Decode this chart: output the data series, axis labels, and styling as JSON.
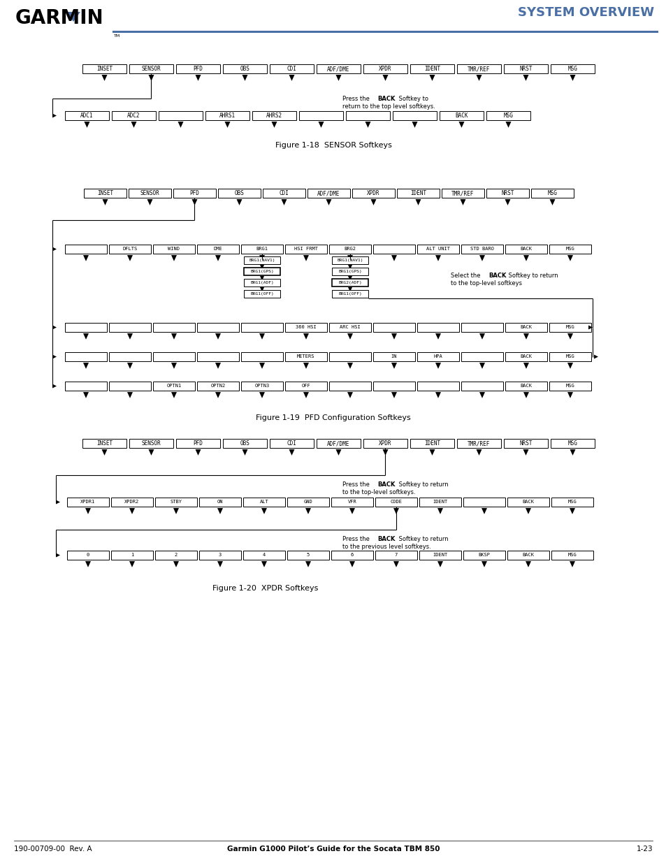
{
  "title": "SYSTEM OVERVIEW",
  "garmin_text": "GARMIN",
  "footer_left": "190-00709-00  Rev. A",
  "footer_center": "Garmin G1000 Pilot’s Guide for the Socata TBM 850",
  "footer_right": "1-23",
  "fig1_title": "Figure 1-18  SENSOR Softkeys",
  "fig2_title": "Figure 1-19  PFD Configuration Softkeys",
  "fig3_title": "Figure 1-20  XPDR Softkeys",
  "header_line_color": "#4a6fa5",
  "title_color": "#4a6fa5",
  "bg_color": "#ffffff",
  "fig1_top_keys": [
    "INSET",
    "SENSOR",
    "PFD",
    "OBS",
    "CDI",
    "ADF/DME",
    "XPDR",
    "IDENT",
    "TMR/REF",
    "NRST",
    "MSG"
  ],
  "fig1_sub_keys": [
    "ADC1",
    "ADC2",
    "",
    "AHRS1",
    "AHRS2",
    "",
    "",
    "",
    "BACK",
    "MSG"
  ],
  "fig2_top_keys": [
    "INSET",
    "SENSOR",
    "PFD",
    "OBS",
    "CDI",
    "ADF/DME",
    "XPDR",
    "IDENT",
    "TMR/REF",
    "NRST",
    "MSG"
  ],
  "fig2_row1_keys": [
    "",
    "DFLTS",
    "WIND",
    "DME",
    "BRG1",
    "HSI FRMT",
    "BRG2",
    "",
    "ALT UNIT",
    "STD BARO",
    "BACK",
    "MSG"
  ],
  "fig2_brg1_keys": [
    "BRG1(NAV1)",
    "BRG1(GPS)",
    "BRG1(ADF)",
    "BRG1(OFF)"
  ],
  "fig2_brg2_keys": [
    "BRG1(NAV1)",
    "BRG1(GPS)",
    "BRG2(ADF)",
    "BRG1(OFF)"
  ],
  "fig2_row2_keys": [
    "",
    "",
    "",
    "",
    "",
    "360 HSI",
    "ARC HSI",
    "",
    "",
    "",
    "BACK",
    "MSG"
  ],
  "fig2_row3_keys": [
    "",
    "",
    "",
    "",
    "",
    "METERS",
    "",
    "IN",
    "HPA",
    "",
    "BACK",
    "MSG"
  ],
  "fig2_row4_keys": [
    "",
    "",
    "OPTN1",
    "OPTN2",
    "OPTN3",
    "OFF",
    "",
    "",
    "",
    "",
    "BACK",
    "MSG"
  ],
  "fig3_top_keys": [
    "INSET",
    "SENSOR",
    "PFD",
    "OBS",
    "CDI",
    "ADF/DME",
    "XPDR",
    "IDENT",
    "TMR/REF",
    "NRST",
    "MSG"
  ],
  "fig3_row1_keys": [
    "XPDR1",
    "XPDR2",
    "STBY",
    "ON",
    "ALT",
    "GND",
    "VFR",
    "CODE",
    "IDENT",
    "",
    "BACK",
    "MSG"
  ],
  "fig3_row2_keys": [
    "0",
    "1",
    "2",
    "3",
    "4",
    "5",
    "6",
    "7",
    "IDENT",
    "BKSP",
    "BACK",
    "MSG"
  ]
}
